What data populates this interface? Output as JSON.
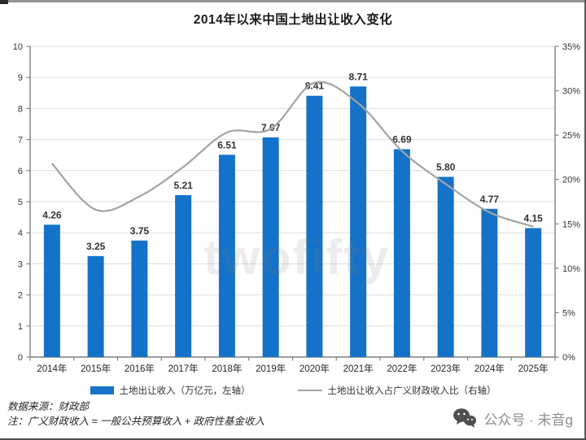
{
  "page": {
    "title": "2014年以来中国土地出让收入变化",
    "source_note": "数据来源：财政部",
    "definition_note": "注：广义财政收入 = 一般公共预算收入 + 政府性基金收入",
    "watermark": "twofifty",
    "badge": {
      "icon": "wechat-icon",
      "text": "公众号 · 未音g"
    }
  },
  "chart_data": {
    "type": "bar",
    "title": "2014年以来中国土地出让收入变化",
    "categories": [
      "2014年",
      "2015年",
      "2016年",
      "2017年",
      "2018年",
      "2019年",
      "2020年",
      "2021年",
      "2022年",
      "2023年",
      "2024年",
      "2025年"
    ],
    "series": [
      {
        "name": "土地出让收入（万亿元，左轴）",
        "type": "bar",
        "axis": "left",
        "color": "#1473C8",
        "values": [
          4.26,
          3.25,
          3.75,
          5.21,
          6.51,
          7.07,
          8.41,
          8.71,
          6.69,
          5.8,
          4.77,
          4.15
        ]
      },
      {
        "name": "土地出让收入占广义财政收入比（右轴）",
        "type": "line",
        "axis": "right",
        "color": "#A3A3A3",
        "values": [
          21.8,
          16.6,
          18.1,
          21.4,
          25.3,
          25.7,
          30.9,
          28.6,
          23.2,
          19.5,
          16.3,
          14.7
        ]
      }
    ],
    "left_axis": {
      "min": 0,
      "max": 10,
      "step": 1,
      "suffix": ""
    },
    "right_axis": {
      "min": 0,
      "max": 35,
      "step": 5,
      "suffix": "%"
    },
    "grid": true,
    "legend_position": "bottom",
    "bar_label_decimals": 2
  }
}
